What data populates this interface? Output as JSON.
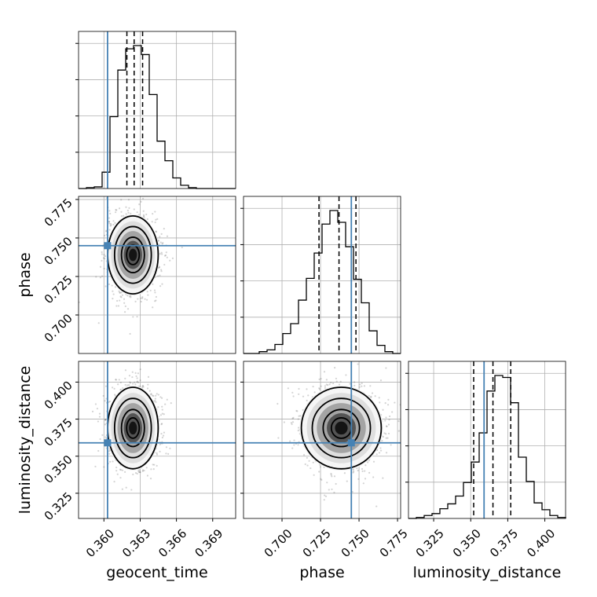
{
  "chart_data": {
    "type": "corner",
    "grid": true,
    "truth_color": "#4682b4",
    "parameters": [
      {
        "name": "geocent_time",
        "ticks": [
          0.36,
          0.363,
          0.366,
          0.369
        ],
        "tick_labels": [
          "0.360",
          "0.363",
          "0.366",
          "0.369"
        ],
        "range": [
          0.3579,
          0.3709
        ],
        "truth": 0.3603
      },
      {
        "name": "phase",
        "ticks": [
          0.7,
          0.725,
          0.75,
          0.775
        ],
        "tick_labels": [
          "0.700",
          "0.725",
          "0.750",
          "0.775"
        ],
        "range": [
          0.675,
          0.777
        ],
        "truth": 0.745
      },
      {
        "name": "luminosity_distance",
        "ticks": [
          0.325,
          0.35,
          0.375,
          0.4
        ],
        "tick_labels": [
          "0.325",
          "0.350",
          "0.375",
          "0.400"
        ],
        "range": [
          0.308,
          0.414
        ],
        "truth": 0.359
      }
    ],
    "histograms": [
      {
        "param": "geocent_time",
        "quantiles": [
          0.3619,
          0.3625,
          0.3632
        ],
        "bins": [
          0.3579,
          0.35855,
          0.3592,
          0.35985,
          0.3605,
          0.36115,
          0.3618,
          0.36245,
          0.3631,
          0.36375,
          0.3644,
          0.36505,
          0.3657,
          0.36635,
          0.367,
          0.36765,
          0.3683,
          0.36895,
          0.3696,
          0.37025,
          0.3709
        ],
        "counts": [
          0,
          1,
          2,
          20,
          88,
          145,
          171,
          175,
          164,
          115,
          58,
          34,
          13,
          4,
          1,
          0,
          0,
          0,
          0,
          0
        ]
      },
      {
        "param": "phase",
        "quantiles": [
          0.724,
          0.737,
          0.748
        ],
        "bins": [
          0.675,
          0.6801,
          0.6852,
          0.6903,
          0.6954,
          0.7005,
          0.7056,
          0.7107,
          0.7158,
          0.7209,
          0.726,
          0.7311,
          0.7362,
          0.7413,
          0.7464,
          0.7515,
          0.7566,
          0.7617,
          0.7668,
          0.7719,
          0.777
        ],
        "counts": [
          0,
          0,
          2,
          4,
          10,
          22,
          33,
          59,
          83,
          111,
          143,
          158,
          145,
          118,
          82,
          56,
          25,
          9,
          2,
          0
        ]
      },
      {
        "param": "luminosity_distance",
        "quantiles": [
          0.352,
          0.365,
          0.377
        ],
        "bins": [
          0.308,
          0.3133,
          0.3186,
          0.3239,
          0.3292,
          0.3345,
          0.3398,
          0.3451,
          0.3504,
          0.3557,
          0.361,
          0.3663,
          0.3716,
          0.3769,
          0.3822,
          0.3875,
          0.3928,
          0.3981,
          0.4034,
          0.4087,
          0.414
        ],
        "counts": [
          0,
          1,
          3,
          5,
          10,
          15,
          23,
          37,
          58,
          88,
          131,
          147,
          145,
          119,
          63,
          38,
          16,
          9,
          3,
          1
        ]
      }
    ],
    "pairs": [
      {
        "x": "geocent_time",
        "y": "phase",
        "mode": [
          0.3624,
          0.739
        ],
        "spread": [
          0.00095,
          0.0115
        ],
        "truth": [
          0.3603,
          0.745
        ]
      },
      {
        "x": "geocent_time",
        "y": "luminosity_distance",
        "mode": [
          0.3624,
          0.369
        ],
        "spread": [
          0.00095,
          0.0125
        ],
        "truth": [
          0.3603,
          0.359
        ]
      },
      {
        "x": "phase",
        "y": "luminosity_distance",
        "mode": [
          0.7385,
          0.369
        ],
        "spread": [
          0.0118,
          0.0125
        ],
        "truth": [
          0.745,
          0.359
        ]
      }
    ]
  }
}
